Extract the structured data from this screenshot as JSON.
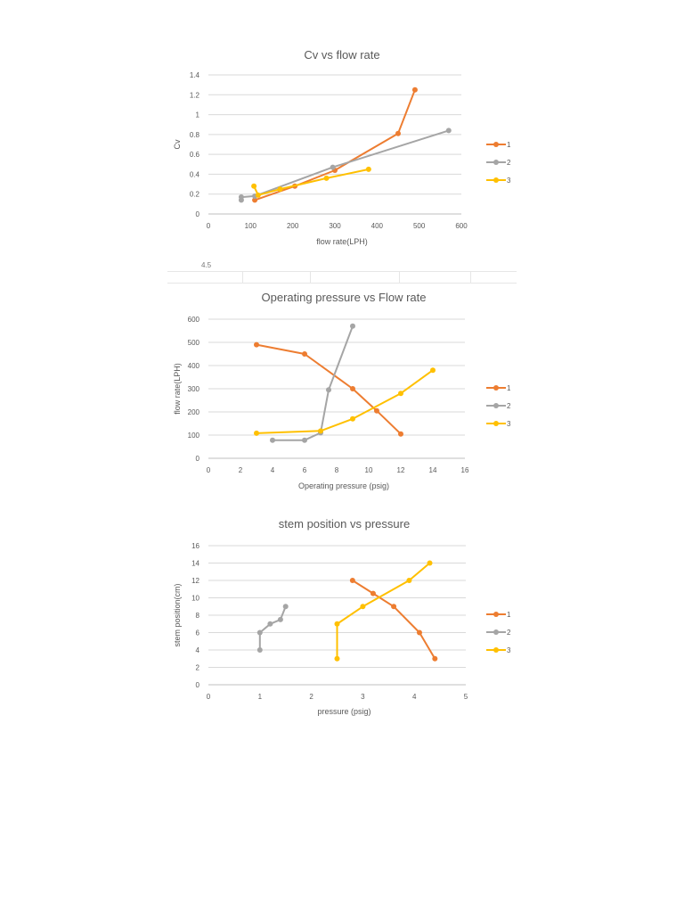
{
  "stray_text": "4.5",
  "chart_data": [
    {
      "type": "line",
      "title": "Cv vs flow rate",
      "xlabel": "flow rate(LPH)",
      "ylabel": "Cv",
      "xlim": [
        0,
        600
      ],
      "ylim": [
        0,
        1.4
      ],
      "xticks": [
        "0",
        "100",
        "200",
        "300",
        "400",
        "500",
        "600"
      ],
      "yticks": [
        "0",
        "0.2",
        "0.4",
        "0.6",
        "0.8",
        "1",
        "1.2",
        "1.4"
      ],
      "grid": true,
      "legend_position": "right",
      "series": [
        {
          "name": "1",
          "color": "#ED7D31",
          "points": [
            [
              110,
              0.14
            ],
            [
              205,
              0.28
            ],
            [
              300,
              0.44
            ],
            [
              450,
              0.81
            ],
            [
              490,
              1.25
            ]
          ]
        },
        {
          "name": "2",
          "color": "#A5A5A5",
          "points": [
            [
              78,
              0.14
            ],
            [
              78,
              0.17
            ],
            [
              110,
              0.18
            ],
            [
              295,
              0.47
            ],
            [
              570,
              0.84
            ]
          ]
        },
        {
          "name": "3",
          "color": "#FFC000",
          "points": [
            [
              108,
              0.28
            ],
            [
              118,
              0.19
            ],
            [
              170,
              0.25
            ],
            [
              280,
              0.36
            ],
            [
              380,
              0.45
            ]
          ]
        }
      ]
    },
    {
      "type": "line",
      "title": "Operating pressure vs Flow rate",
      "xlabel": "Operating pressure (psig)",
      "ylabel": "flow rate(LPH)",
      "xlim": [
        0,
        16
      ],
      "ylim": [
        0,
        600
      ],
      "xticks": [
        "0",
        "2",
        "4",
        "6",
        "8",
        "10",
        "12",
        "14",
        "16"
      ],
      "yticks": [
        "0",
        "100",
        "200",
        "300",
        "400",
        "500",
        "600"
      ],
      "grid": true,
      "legend_position": "right",
      "series": [
        {
          "name": "1",
          "color": "#ED7D31",
          "points": [
            [
              3,
              490
            ],
            [
              6,
              450
            ],
            [
              9,
              300
            ],
            [
              10.5,
              205
            ],
            [
              12,
              105
            ]
          ]
        },
        {
          "name": "2",
          "color": "#A5A5A5",
          "points": [
            [
              4,
              78
            ],
            [
              6,
              78
            ],
            [
              7,
              110
            ],
            [
              7.5,
              295
            ],
            [
              9,
              570
            ]
          ]
        },
        {
          "name": "3",
          "color": "#FFC000",
          "points": [
            [
              3,
              108
            ],
            [
              7,
              118
            ],
            [
              9,
              170
            ],
            [
              12,
              280
            ],
            [
              14,
              380
            ]
          ]
        }
      ]
    },
    {
      "type": "line",
      "title": "stem position vs pressure",
      "xlabel": "pressure (psig)",
      "ylabel": "stem position(cm)",
      "xlim": [
        0,
        5
      ],
      "ylim": [
        0,
        16
      ],
      "xticks": [
        "0",
        "1",
        "2",
        "3",
        "4",
        "5"
      ],
      "yticks": [
        "0",
        "2",
        "4",
        "6",
        "8",
        "10",
        "12",
        "14",
        "16"
      ],
      "grid": true,
      "legend_position": "right",
      "series": [
        {
          "name": "1",
          "color": "#ED7D31",
          "points": [
            [
              2.8,
              12
            ],
            [
              3.2,
              10.5
            ],
            [
              3.6,
              9
            ],
            [
              4.1,
              6
            ],
            [
              4.4,
              3
            ]
          ]
        },
        {
          "name": "2",
          "color": "#A5A5A5",
          "points": [
            [
              1,
              4
            ],
            [
              1,
              6
            ],
            [
              1.2,
              7
            ],
            [
              1.4,
              7.5
            ],
            [
              1.5,
              9
            ]
          ]
        },
        {
          "name": "3",
          "color": "#FFC000",
          "points": [
            [
              2.5,
              3
            ],
            [
              2.5,
              7
            ],
            [
              3,
              9
            ],
            [
              3.9,
              12
            ],
            [
              4.3,
              14
            ]
          ]
        }
      ]
    }
  ]
}
